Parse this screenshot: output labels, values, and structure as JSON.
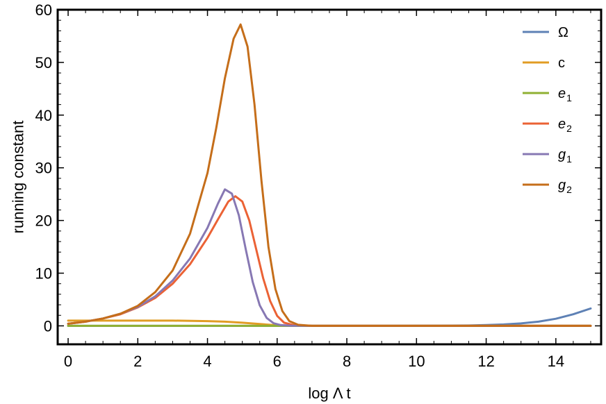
{
  "chart_data": {
    "type": "line",
    "title": "",
    "xlabel": "log Λ t",
    "ylabel": "running constant",
    "xlim": [
      -0.3,
      15.3
    ],
    "ylim": [
      -3.5,
      60
    ],
    "xticks": [
      0,
      2,
      4,
      6,
      8,
      10,
      12,
      14
    ],
    "yticks": [
      0,
      10,
      20,
      30,
      40,
      50,
      60
    ],
    "x_tick_labels": [
      "0",
      "2",
      "4",
      "6",
      "8",
      "10",
      "12",
      "14"
    ],
    "y_tick_labels": [
      "0",
      "10",
      "20",
      "30",
      "40",
      "50",
      "60"
    ],
    "grid": false,
    "legend_position": "top-right",
    "series": [
      {
        "name": "Ω",
        "label_main": "Ω",
        "label_sub": "",
        "italic": false,
        "color": "#5E81B5",
        "x": [
          0,
          1,
          2,
          3,
          4,
          5,
          6,
          7,
          8,
          9,
          10,
          11,
          11.5,
          12,
          12.5,
          13,
          13.5,
          14,
          14.5,
          15
        ],
        "y": [
          0,
          0,
          0,
          0,
          0,
          0,
          0,
          0,
          0,
          0,
          0.02,
          0.05,
          0.08,
          0.15,
          0.27,
          0.47,
          0.8,
          1.35,
          2.2,
          3.3
        ]
      },
      {
        "name": "c",
        "label_main": "c",
        "label_sub": "",
        "italic": false,
        "color": "#E19C24",
        "x": [
          0,
          1,
          2,
          3,
          4,
          4.5,
          5,
          5.5,
          6,
          6.5,
          7,
          8,
          10,
          12,
          15
        ],
        "y": [
          1.0,
          1.0,
          1.0,
          1.0,
          0.9,
          0.8,
          0.6,
          0.35,
          0.1,
          0.02,
          0,
          0,
          0,
          0,
          0
        ]
      },
      {
        "name": "e1",
        "label_main": "e",
        "label_sub": "1",
        "italic": true,
        "color": "#8FB032",
        "x": [
          0,
          15
        ],
        "y": [
          0,
          0
        ]
      },
      {
        "name": "e2",
        "label_main": "e",
        "label_sub": "2",
        "italic": true,
        "color": "#EB6235",
        "x": [
          0,
          0.5,
          1,
          1.5,
          2,
          2.5,
          3,
          3.5,
          4,
          4.3,
          4.6,
          4.8,
          5.0,
          5.2,
          5.4,
          5.6,
          5.8,
          6.0,
          6.2,
          6.5,
          7,
          8,
          15
        ],
        "y": [
          0.4,
          0.8,
          1.4,
          2.2,
          3.5,
          5.3,
          8.0,
          11.7,
          16.7,
          20.2,
          23.6,
          24.6,
          23.6,
          20.0,
          14.5,
          9.0,
          4.7,
          1.9,
          0.6,
          0.1,
          0,
          0,
          0
        ]
      },
      {
        "name": "g1",
        "label_main": "g",
        "label_sub": "1",
        "italic": true,
        "color": "#8778B3",
        "x": [
          0,
          0.5,
          1,
          1.5,
          2,
          2.5,
          3,
          3.5,
          4,
          4.3,
          4.5,
          4.7,
          4.9,
          5.1,
          5.3,
          5.5,
          5.7,
          5.9,
          6.1,
          6.4,
          7,
          8,
          15
        ],
        "y": [
          0.4,
          0.8,
          1.4,
          2.3,
          3.6,
          5.6,
          8.6,
          12.8,
          18.6,
          23.2,
          25.9,
          25.1,
          21.0,
          14.5,
          8.3,
          3.9,
          1.5,
          0.5,
          0.15,
          0.02,
          0,
          0,
          0
        ]
      },
      {
        "name": "g2",
        "label_main": "g",
        "label_sub": "2",
        "italic": true,
        "color": "#C56E1A",
        "x": [
          0,
          0.5,
          1,
          1.5,
          2,
          2.5,
          3,
          3.5,
          4,
          4.25,
          4.5,
          4.75,
          4.95,
          5.15,
          5.35,
          5.55,
          5.75,
          5.95,
          6.15,
          6.35,
          6.6,
          7,
          8,
          15
        ],
        "y": [
          0.4,
          0.8,
          1.4,
          2.3,
          3.8,
          6.4,
          10.5,
          17.5,
          29.0,
          37.5,
          47.0,
          54.5,
          57.2,
          53.0,
          42.0,
          27.5,
          15.0,
          7.0,
          2.8,
          0.9,
          0.2,
          0,
          0,
          0
        ]
      }
    ]
  }
}
